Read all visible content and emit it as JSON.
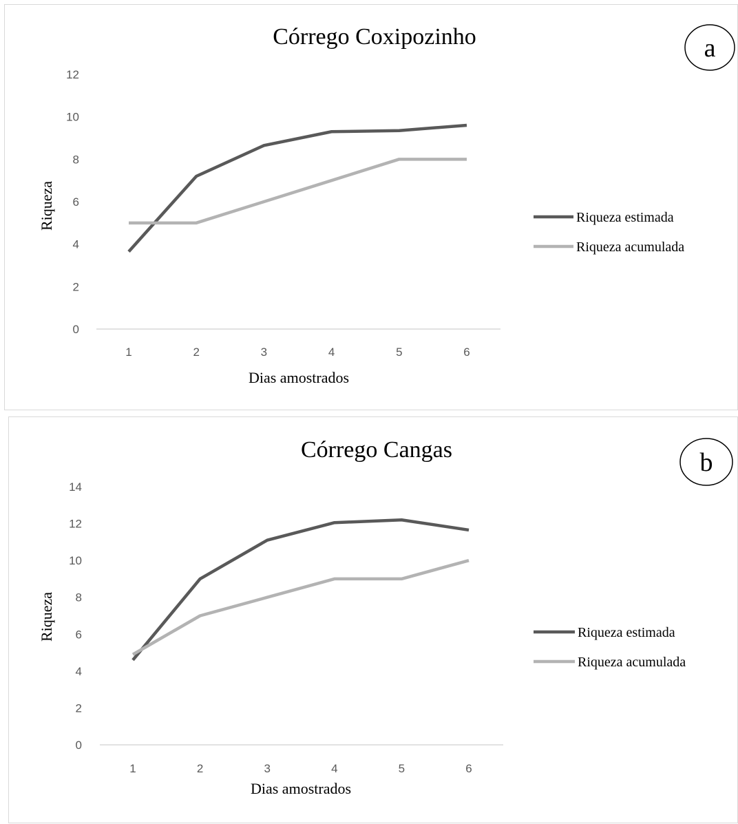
{
  "chart_data": [
    {
      "type": "line",
      "title": "Córrego Coxipozinho",
      "panel_label": "a",
      "xlabel": "Dias amostrados",
      "ylabel": "Riqueza",
      "x": [
        1,
        2,
        3,
        4,
        5,
        6
      ],
      "ylim": [
        0,
        12
      ],
      "yticks": [
        0,
        2,
        4,
        6,
        8,
        10,
        12
      ],
      "grid": false,
      "legend": "right",
      "series": [
        {
          "name": "Riqueza estimada",
          "color": "#595959",
          "values": [
            3.65,
            7.2,
            8.65,
            9.3,
            9.35,
            9.6
          ]
        },
        {
          "name": "Riqueza acumulada",
          "color": "#b3b3b3",
          "values": [
            5,
            5,
            6,
            7,
            8,
            8
          ]
        }
      ]
    },
    {
      "type": "line",
      "title": "Córrego Cangas",
      "panel_label": "b",
      "xlabel": "Dias amostrados",
      "ylabel": "Riqueza",
      "x": [
        1,
        2,
        3,
        4,
        5,
        6
      ],
      "ylim": [
        0,
        14
      ],
      "yticks": [
        0,
        2,
        4,
        6,
        8,
        10,
        12,
        14
      ],
      "grid": false,
      "legend": "right",
      "series": [
        {
          "name": "Riqueza estimada",
          "color": "#595959",
          "values": [
            4.6,
            9,
            11.1,
            12.05,
            12.2,
            11.65
          ]
        },
        {
          "name": "Riqueza acumulada",
          "color": "#b3b3b3",
          "values": [
            4.9,
            7,
            8,
            9,
            9,
            10
          ]
        }
      ]
    }
  ]
}
